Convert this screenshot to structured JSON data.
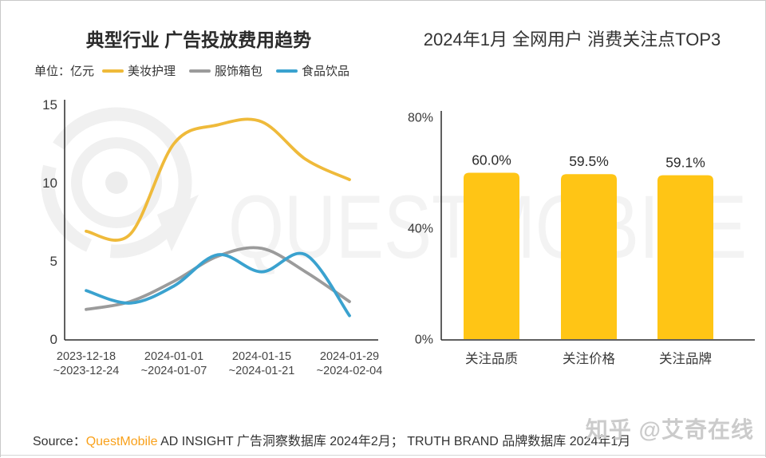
{
  "watermarks": {
    "brand": "QUESTMOBILE",
    "social": "知乎 @艾奇在线",
    "color": "#f2f2f2"
  },
  "source": {
    "prefix": "Source：",
    "brand": "QuestMobile",
    "detail": " AD INSIGHT 广告洞察数据库 2024年2月； TRUTH BRAND 品牌数据库 2024年1月",
    "brand_color": "#F9A11B"
  },
  "chart_data": [
    {
      "type": "line",
      "title": "典型行业 广告投放费用趋势",
      "unit_label": "单位：亿元",
      "ylabel": "亿元",
      "ylim": [
        0,
        15
      ],
      "yticks": [
        0,
        5,
        10,
        15
      ],
      "x_tick_labels": [
        [
          "2023-12-18",
          "~2023-12-24"
        ],
        [
          "2024-01-01",
          "~2024-01-07"
        ],
        [
          "2024-01-15",
          "~2024-01-21"
        ],
        [
          "2024-01-29",
          "~2024-02-04"
        ]
      ],
      "x_points": 7,
      "grid": false,
      "legend_position": "top",
      "series": [
        {
          "name": "美妆护理",
          "color": "#EFBA3A",
          "values": [
            6.9,
            6.7,
            12.5,
            13.7,
            13.9,
            11.5,
            10.2
          ]
        },
        {
          "name": "服饰箱包",
          "color": "#9B9B9B",
          "values": [
            1.9,
            2.4,
            3.7,
            5.3,
            5.8,
            4.3,
            2.4
          ]
        },
        {
          "name": "食品饮品",
          "color": "#3AA2CF",
          "values": [
            3.1,
            2.3,
            3.4,
            5.4,
            4.3,
            5.4,
            1.5
          ]
        }
      ]
    },
    {
      "type": "bar",
      "title": "2024年1月 全网用户 消费关注点TOP3",
      "categories": [
        "关注品质",
        "关注价格",
        "关注品牌"
      ],
      "values": [
        60.0,
        59.5,
        59.1
      ],
      "value_labels": [
        "60.0%",
        "59.5%",
        "59.1%"
      ],
      "bar_color": "#FFC515",
      "ylim": [
        0,
        80
      ],
      "yticks": [
        0,
        40,
        80
      ],
      "ytick_labels": [
        "0%",
        "40%",
        "80%"
      ],
      "grid": false
    }
  ]
}
